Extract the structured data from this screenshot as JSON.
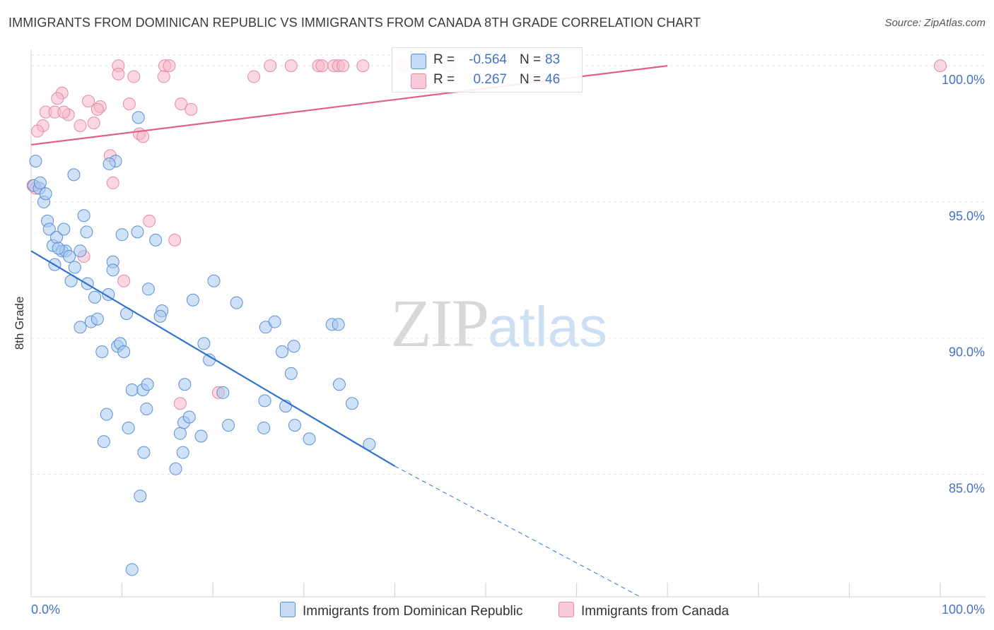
{
  "header": {
    "title": "IMMIGRANTS FROM DOMINICAN REPUBLIC VS IMMIGRANTS FROM CANADA 8TH GRADE CORRELATION CHART",
    "source": "Source: ZipAtlas.com"
  },
  "watermark": {
    "zip": "ZIP",
    "atlas": "atlas"
  },
  "legend": {
    "rows": [
      {
        "r_label": "R =",
        "r_value": "-0.564",
        "n_label": "N =",
        "n_value": "83",
        "color": "#a8c8f0"
      },
      {
        "r_label": "R =",
        "r_value": "0.267",
        "n_label": "N =",
        "n_value": "46",
        "color": "#f6b6c8"
      }
    ]
  },
  "bottom_legend": {
    "series1": "Immigrants from Dominican Republic",
    "series2": "Immigrants from Canada"
  },
  "colors": {
    "blue_fill": "#a8c8f0",
    "blue_stroke": "#5b8fd6",
    "blue_line": "#2f72d0",
    "pink_fill": "#f6b6c8",
    "pink_stroke": "#e58aa6",
    "pink_line": "#e0608a",
    "grid": "#e2e2e2",
    "tick_text": "#4472c4"
  },
  "chart_data": {
    "type": "scatter",
    "title": "IMMIGRANTS FROM DOMINICAN REPUBLIC VS IMMIGRANTS FROM CANADA 8TH GRADE CORRELATION CHART",
    "xlabel": "",
    "ylabel": "8th Grade",
    "xlim": [
      0,
      100
    ],
    "ylim": [
      80.5,
      100.6
    ],
    "x_tick_labels": [
      "0.0%",
      "100.0%"
    ],
    "y_ticks": [
      85,
      90,
      95,
      100
    ],
    "y_tick_labels": [
      "85.0%",
      "90.0%",
      "95.0%",
      "100.0%"
    ],
    "grid": true,
    "legend_position": "top-center",
    "series": [
      {
        "name": "Immigrants from Dominican Republic",
        "color": "#a8c8f0",
        "trend": {
          "x0": 0,
          "y0": 93.2,
          "x1": 40,
          "y1": 85.3,
          "dashed_to_x": 67,
          "dashed_to_y": 80.5
        },
        "points": [
          [
            0.3,
            95.6
          ],
          [
            0.5,
            96.5
          ],
          [
            0.9,
            95.5
          ],
          [
            1.4,
            95.0
          ],
          [
            1.6,
            95.3
          ],
          [
            11.8,
            98.1
          ],
          [
            9.3,
            96.5
          ],
          [
            8.6,
            96.4
          ],
          [
            4.7,
            96.0
          ],
          [
            1.8,
            94.3
          ],
          [
            2.0,
            94.0
          ],
          [
            2.4,
            93.4
          ],
          [
            2.8,
            93.7
          ],
          [
            3.4,
            93.2
          ],
          [
            3.6,
            94.0
          ],
          [
            3.8,
            93.2
          ],
          [
            4.2,
            93.0
          ],
          [
            5.8,
            94.5
          ],
          [
            6.1,
            93.9
          ],
          [
            5.4,
            93.2
          ],
          [
            2.6,
            92.7
          ],
          [
            4.8,
            92.6
          ],
          [
            9.0,
            92.8
          ],
          [
            10.0,
            93.8
          ],
          [
            11.7,
            93.9
          ],
          [
            13.7,
            93.6
          ],
          [
            4.4,
            92.1
          ],
          [
            6.2,
            92.0
          ],
          [
            7.0,
            91.5
          ],
          [
            8.5,
            91.6
          ],
          [
            9.0,
            92.5
          ],
          [
            10.5,
            90.9
          ],
          [
            12.9,
            91.8
          ],
          [
            14.4,
            91.0
          ],
          [
            14.2,
            90.8
          ],
          [
            17.8,
            91.4
          ],
          [
            20.1,
            92.1
          ],
          [
            22.6,
            91.3
          ],
          [
            25.8,
            90.4
          ],
          [
            26.8,
            90.6
          ],
          [
            33.1,
            90.5
          ],
          [
            33.8,
            90.5
          ],
          [
            5.4,
            90.4
          ],
          [
            6.6,
            90.6
          ],
          [
            7.3,
            90.7
          ],
          [
            9.5,
            89.7
          ],
          [
            9.8,
            89.8
          ],
          [
            7.8,
            89.5
          ],
          [
            10.2,
            89.5
          ],
          [
            19.0,
            89.8
          ],
          [
            19.6,
            89.2
          ],
          [
            27.6,
            89.5
          ],
          [
            28.9,
            89.7
          ],
          [
            28.6,
            88.7
          ],
          [
            11.1,
            88.1
          ],
          [
            12.3,
            88.1
          ],
          [
            12.8,
            88.3
          ],
          [
            16.9,
            88.3
          ],
          [
            21.1,
            88.0
          ],
          [
            25.7,
            87.7
          ],
          [
            28.0,
            87.5
          ],
          [
            33.9,
            88.3
          ],
          [
            35.3,
            87.6
          ],
          [
            8.3,
            87.2
          ],
          [
            10.7,
            86.7
          ],
          [
            12.7,
            87.4
          ],
          [
            16.4,
            86.5
          ],
          [
            16.7,
            85.8
          ],
          [
            16.8,
            86.9
          ],
          [
            17.4,
            87.1
          ],
          [
            18.7,
            86.4
          ],
          [
            21.7,
            86.8
          ],
          [
            25.6,
            86.7
          ],
          [
            29.0,
            86.8
          ],
          [
            30.6,
            86.3
          ],
          [
            37.2,
            86.1
          ],
          [
            8.0,
            86.2
          ],
          [
            12.4,
            85.8
          ],
          [
            15.9,
            85.2
          ],
          [
            12.0,
            84.2
          ],
          [
            11.1,
            81.5
          ],
          [
            1.0,
            95.7
          ],
          [
            3.0,
            93.3
          ]
        ]
      },
      {
        "name": "Immigrants from Canada",
        "color": "#f6b6c8",
        "trend": {
          "x0": 0,
          "y0": 97.1,
          "x1": 70,
          "y1": 100.0
        },
        "points": [
          [
            9.6,
            100.0
          ],
          [
            14.7,
            100.0
          ],
          [
            15.2,
            100.0
          ],
          [
            26.3,
            100.0
          ],
          [
            28.6,
            100.0
          ],
          [
            31.6,
            100.0
          ],
          [
            32.0,
            100.0
          ],
          [
            33.3,
            100.0
          ],
          [
            33.8,
            100.0
          ],
          [
            34.3,
            100.0
          ],
          [
            36.5,
            100.0
          ],
          [
            40.9,
            100.0
          ],
          [
            46.0,
            100.0
          ],
          [
            100.0,
            100.0
          ],
          [
            9.6,
            99.7
          ],
          [
            11.3,
            99.6
          ],
          [
            14.6,
            99.6
          ],
          [
            24.5,
            99.6
          ],
          [
            3.4,
            99.0
          ],
          [
            2.9,
            98.8
          ],
          [
            6.3,
            98.7
          ],
          [
            7.6,
            98.5
          ],
          [
            10.8,
            98.6
          ],
          [
            16.5,
            98.6
          ],
          [
            17.6,
            98.4
          ],
          [
            1.6,
            98.3
          ],
          [
            2.6,
            98.3
          ],
          [
            4.1,
            98.2
          ],
          [
            3.6,
            98.3
          ],
          [
            7.3,
            98.4
          ],
          [
            1.3,
            97.8
          ],
          [
            0.7,
            97.6
          ],
          [
            5.4,
            97.8
          ],
          [
            6.9,
            97.9
          ],
          [
            11.9,
            97.5
          ],
          [
            12.3,
            97.4
          ],
          [
            8.7,
            96.7
          ],
          [
            9.0,
            95.7
          ],
          [
            0.2,
            95.6
          ],
          [
            13.0,
            94.3
          ],
          [
            15.8,
            93.6
          ],
          [
            5.8,
            93.0
          ],
          [
            10.2,
            92.1
          ],
          [
            16.4,
            87.6
          ],
          [
            20.6,
            88.0
          ],
          [
            0.5,
            95.5
          ]
        ]
      }
    ]
  }
}
